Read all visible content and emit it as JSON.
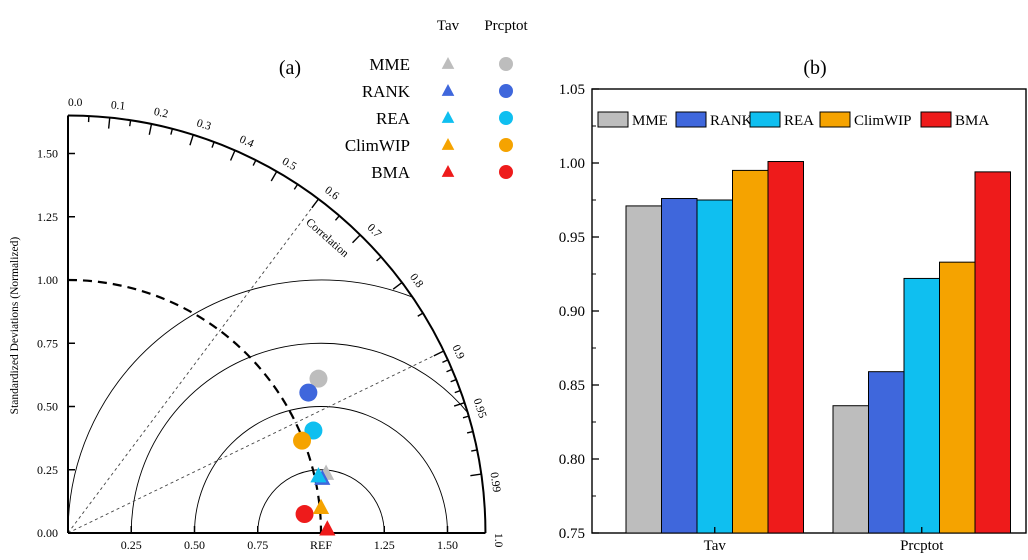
{
  "chart_data": [
    {
      "type": "scatter",
      "panel_label": "(a)",
      "ylabel": "Standardized Deviations (Normalized)",
      "xlim": [
        0,
        1.65
      ],
      "ylim": [
        0,
        1.65
      ],
      "x_ticks": [
        {
          "v": 0.25,
          "label": "0.25"
        },
        {
          "v": 0.5,
          "label": "0.50"
        },
        {
          "v": 0.75,
          "label": "0.75"
        },
        {
          "v": 1.0,
          "label": "REF"
        },
        {
          "v": 1.25,
          "label": "1.25"
        },
        {
          "v": 1.5,
          "label": "1.50"
        }
      ],
      "y_ticks": [
        {
          "v": 0.0,
          "label": "0.00"
        },
        {
          "v": 0.25,
          "label": "0.25"
        },
        {
          "v": 0.5,
          "label": "0.50"
        },
        {
          "v": 0.75,
          "label": "0.75"
        },
        {
          "v": 1.0,
          "label": "1.00"
        },
        {
          "v": 1.25,
          "label": "1.25"
        },
        {
          "v": 1.5,
          "label": "1.50"
        }
      ],
      "correlation_label": "Correlation",
      "correlation_ticks": [
        {
          "v": 0.0,
          "label": "0.0"
        },
        {
          "v": 0.1,
          "label": "0.1"
        },
        {
          "v": 0.2,
          "label": "0.2"
        },
        {
          "v": 0.3,
          "label": "0.3"
        },
        {
          "v": 0.4,
          "label": "0.4"
        },
        {
          "v": 0.5,
          "label": "0.5"
        },
        {
          "v": 0.6,
          "label": "0.6"
        },
        {
          "v": 0.7,
          "label": "0.7"
        },
        {
          "v": 0.8,
          "label": "0.8"
        },
        {
          "v": 0.9,
          "label": "0.9"
        },
        {
          "v": 0.95,
          "label": "0.95"
        },
        {
          "v": 0.99,
          "label": "0.99"
        },
        {
          "v": 1.0,
          "label": "1.0"
        }
      ],
      "correlation_minor_ticks": [
        0.05,
        0.15,
        0.25,
        0.35,
        0.45,
        0.55,
        0.65,
        0.75,
        0.85,
        0.91,
        0.92,
        0.93,
        0.94,
        0.96,
        0.97,
        0.98
      ],
      "radial_lines": [
        0.6,
        0.9
      ],
      "rms_arcs": [
        0.25,
        0.5,
        0.75,
        1.0
      ],
      "legend": {
        "column_headers": [
          "Tav",
          "Prcptot"
        ],
        "entries": [
          "MME",
          "RANK",
          "REA",
          "ClimWIP",
          "BMA"
        ],
        "placement": "top-right"
      },
      "series": [
        {
          "name": "MME",
          "color": "#bdbdbd",
          "Tav": {
            "x": 1.02,
            "y": 0.235
          },
          "Prcptot": {
            "x": 0.99,
            "y": 0.61
          }
        },
        {
          "name": "RANK",
          "color": "#3f67dc",
          "Tav": {
            "x": 1.005,
            "y": 0.215
          },
          "Prcptot": {
            "x": 0.95,
            "y": 0.555
          }
        },
        {
          "name": "REA",
          "color": "#0fbff0",
          "Tav": {
            "x": 0.99,
            "y": 0.225
          },
          "Prcptot": {
            "x": 0.97,
            "y": 0.405
          }
        },
        {
          "name": "ClimWIP",
          "color": "#f5a300",
          "Tav": {
            "x": 1.0,
            "y": 0.1
          },
          "Prcptot": {
            "x": 0.925,
            "y": 0.365
          }
        },
        {
          "name": "BMA",
          "color": "#ee1b1b",
          "Tav": {
            "x": 1.025,
            "y": 0.015
          },
          "Prcptot": {
            "x": 0.935,
            "y": 0.075
          }
        }
      ]
    },
    {
      "type": "bar",
      "panel_label": "(b)",
      "categories": [
        "Tav",
        "Prcptot"
      ],
      "ylim": [
        0.75,
        1.05
      ],
      "y_ticks": [
        {
          "v": 0.75,
          "label": "0.75"
        },
        {
          "v": 0.8,
          "label": "0.80"
        },
        {
          "v": 0.85,
          "label": "0.85"
        },
        {
          "v": 0.9,
          "label": "0.90"
        },
        {
          "v": 0.95,
          "label": "0.95"
        },
        {
          "v": 1.0,
          "label": "1.00"
        },
        {
          "v": 1.05,
          "label": "1.05"
        }
      ],
      "legend_placement": "top",
      "series": [
        {
          "name": "MME",
          "color": "#bdbdbd",
          "values": [
            0.971,
            0.836
          ]
        },
        {
          "name": "RANK",
          "color": "#3f67dc",
          "values": [
            0.976,
            0.859
          ]
        },
        {
          "name": "REA",
          "color": "#0fbff0",
          "values": [
            0.975,
            0.922
          ]
        },
        {
          "name": "ClimWIP",
          "color": "#f5a300",
          "values": [
            0.995,
            0.933
          ]
        },
        {
          "name": "BMA",
          "color": "#ee1b1b",
          "values": [
            1.001,
            0.994
          ]
        }
      ]
    }
  ]
}
